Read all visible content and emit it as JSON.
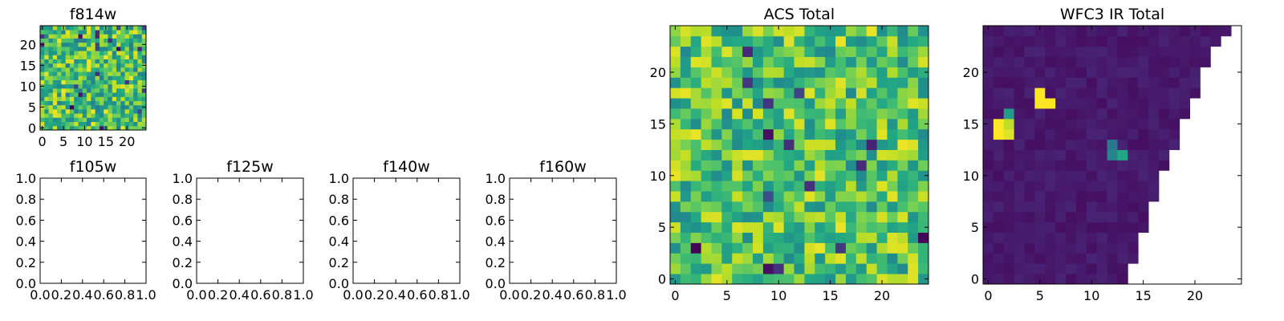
{
  "figure": {
    "background": "#ffffff",
    "panels": [
      {
        "id": "f814w",
        "title": "f814w",
        "kind": "heatmap",
        "colormap": "viridis",
        "ylim": [
          0,
          24
        ],
        "xlim": [
          0,
          24
        ],
        "xticks": [
          "0",
          "5",
          "10",
          "15",
          "20"
        ],
        "yticks": [
          "0",
          "5",
          "10",
          "15",
          "20"
        ]
      },
      {
        "id": "f105w",
        "title": "f105w",
        "kind": "empty",
        "xticks": [
          "0.0",
          "0.2",
          "0.4",
          "0.6",
          "0.8",
          "1.0"
        ],
        "yticks": [
          "0.0",
          "0.2",
          "0.4",
          "0.6",
          "0.8",
          "1.0"
        ]
      },
      {
        "id": "f125w",
        "title": "f125w",
        "kind": "empty",
        "xticks": [
          "0.0",
          "0.2",
          "0.4",
          "0.6",
          "0.8",
          "1.0"
        ],
        "yticks": [
          "0.0",
          "0.2",
          "0.4",
          "0.6",
          "0.8",
          "1.0"
        ]
      },
      {
        "id": "f140w",
        "title": "f140w",
        "kind": "empty",
        "xticks": [
          "0.0",
          "0.2",
          "0.4",
          "0.6",
          "0.8",
          "1.0"
        ],
        "yticks": [
          "0.0",
          "0.2",
          "0.4",
          "0.6",
          "0.8",
          "1.0"
        ]
      },
      {
        "id": "f160w",
        "title": "f160w",
        "kind": "empty",
        "xticks": [
          "0.0",
          "0.2",
          "0.4",
          "0.6",
          "0.8",
          "1.0"
        ],
        "yticks": [
          "0.0",
          "0.2",
          "0.4",
          "0.6",
          "0.8",
          "1.0"
        ]
      },
      {
        "id": "acs-total",
        "title": "ACS Total",
        "kind": "heatmap",
        "colormap": "viridis",
        "xlim": [
          0,
          24
        ],
        "ylim": [
          0,
          24
        ],
        "xticks": [
          "0",
          "5",
          "10",
          "15",
          "20"
        ],
        "yticks": [
          "0",
          "5",
          "10",
          "15",
          "20"
        ]
      },
      {
        "id": "wfc3-ir-total",
        "title": "WFC3 IR Total",
        "kind": "heatmap",
        "colormap": "viridis",
        "xlim": [
          0,
          24
        ],
        "ylim": [
          0,
          24
        ],
        "xticks": [
          "0",
          "5",
          "10",
          "15",
          "20"
        ],
        "yticks": [
          "0",
          "5",
          "10",
          "15",
          "20"
        ]
      }
    ]
  },
  "chart_data": [
    {
      "type": "heatmap",
      "title": "f814w",
      "grid_size": [
        25,
        25
      ],
      "colormap": "viridis",
      "value_range": [
        0,
        1
      ],
      "description_note": "",
      "distribution": "noise",
      "noise_mean": 0.7,
      "noise_spread": 0.28,
      "xticks": [
        0,
        5,
        10,
        15,
        20
      ],
      "yticks": [
        0,
        5,
        10,
        15,
        20
      ],
      "xlim": [
        -0.5,
        24.5
      ],
      "ylim": [
        -0.5,
        24.5
      ]
    },
    {
      "type": "table",
      "title": "f105w",
      "values": [],
      "xlim": [
        0,
        1
      ],
      "ylim": [
        0,
        1
      ],
      "xticks": [
        0.0,
        0.2,
        0.4,
        0.6,
        0.8,
        1.0
      ],
      "yticks": [
        0.0,
        0.2,
        0.4,
        0.6,
        0.8,
        1.0
      ]
    },
    {
      "type": "table",
      "title": "f125w",
      "values": [],
      "xlim": [
        0,
        1
      ],
      "ylim": [
        0,
        1
      ],
      "xticks": [
        0.0,
        0.2,
        0.4,
        0.6,
        0.8,
        1.0
      ],
      "yticks": [
        0.0,
        0.2,
        0.4,
        0.6,
        0.8,
        1.0
      ]
    },
    {
      "type": "table",
      "title": "f140w",
      "values": [],
      "xlim": [
        0,
        1
      ],
      "ylim": [
        0,
        1
      ],
      "xticks": [
        0.0,
        0.2,
        0.4,
        0.6,
        0.8,
        1.0
      ],
      "yticks": [
        0.0,
        0.2,
        0.4,
        0.6,
        0.8,
        1.0
      ]
    },
    {
      "type": "table",
      "title": "f160w",
      "values": [],
      "xlim": [
        0,
        1
      ],
      "ylim": [
        0,
        1
      ],
      "xticks": [
        0.0,
        0.2,
        0.4,
        0.6,
        0.8,
        1.0
      ],
      "yticks": [
        0.0,
        0.2,
        0.4,
        0.6,
        0.8,
        1.0
      ]
    },
    {
      "type": "heatmap",
      "title": "ACS Total",
      "grid_size": [
        25,
        25
      ],
      "colormap": "viridis",
      "value_range": [
        0,
        1
      ],
      "distribution": "noise",
      "noise_mean": 0.72,
      "noise_spread": 0.25,
      "xticks": [
        0,
        5,
        10,
        15,
        20
      ],
      "yticks": [
        0,
        5,
        10,
        15,
        20
      ],
      "xlim": [
        -0.5,
        24.5
      ],
      "ylim": [
        -0.5,
        24.5
      ]
    },
    {
      "type": "heatmap",
      "title": "WFC3 IR Total",
      "grid_size": [
        25,
        25
      ],
      "colormap": "viridis",
      "value_range": [
        0,
        1
      ],
      "background_level": 0.04,
      "hot_pixels": [
        {
          "x": 5,
          "y": 17,
          "value": 1.0
        },
        {
          "x": 6,
          "y": 17,
          "value": 1.0
        },
        {
          "x": 5,
          "y": 18,
          "value": 1.0
        },
        {
          "x": 1,
          "y": 14,
          "value": 1.0
        },
        {
          "x": 2,
          "y": 14,
          "value": 0.95
        },
        {
          "x": 1,
          "y": 15,
          "value": 1.0
        },
        {
          "x": 2,
          "y": 15,
          "value": 0.9
        },
        {
          "x": 2,
          "y": 16,
          "value": 0.55
        },
        {
          "x": 12,
          "y": 12,
          "value": 0.45
        },
        {
          "x": 13,
          "y": 12,
          "value": 0.6
        },
        {
          "x": 12,
          "y": 13,
          "value": 0.4
        }
      ],
      "empty_region_right_edge": [
        {
          "y": 0,
          "x_max": 13
        },
        {
          "y": 1,
          "x_max": 13
        },
        {
          "y": 2,
          "x_max": 14
        },
        {
          "y": 3,
          "x_max": 14
        },
        {
          "y": 4,
          "x_max": 14
        },
        {
          "y": 5,
          "x_max": 15
        },
        {
          "y": 6,
          "x_max": 15
        },
        {
          "y": 7,
          "x_max": 15
        },
        {
          "y": 8,
          "x_max": 16
        },
        {
          "y": 9,
          "x_max": 16
        },
        {
          "y": 10,
          "x_max": 16
        },
        {
          "y": 11,
          "x_max": 17
        },
        {
          "y": 12,
          "x_max": 17
        },
        {
          "y": 13,
          "x_max": 18
        },
        {
          "y": 14,
          "x_max": 18
        },
        {
          "y": 15,
          "x_max": 18
        },
        {
          "y": 16,
          "x_max": 19
        },
        {
          "y": 17,
          "x_max": 19
        },
        {
          "y": 18,
          "x_max": 20
        },
        {
          "y": 19,
          "x_max": 20
        },
        {
          "y": 20,
          "x_max": 20
        },
        {
          "y": 21,
          "x_max": 21
        },
        {
          "y": 22,
          "x_max": 21
        },
        {
          "y": 23,
          "x_max": 22
        },
        {
          "y": 24,
          "x_max": 23
        }
      ],
      "xticks": [
        0,
        5,
        10,
        15,
        20
      ],
      "yticks": [
        0,
        5,
        10,
        15,
        20
      ],
      "xlim": [
        -0.5,
        24.5
      ],
      "ylim": [
        -0.5,
        24.5
      ]
    }
  ]
}
